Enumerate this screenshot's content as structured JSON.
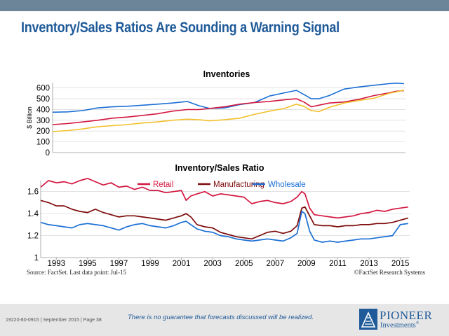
{
  "slide": {
    "title": "Inventory/Sales Ratios Are Sounding a Warning Signal",
    "source": "Source: FactSet. Last data point: Jul-15",
    "copyright": "©FactSet Research Systems"
  },
  "footer": {
    "doc_id": "19220-80-0915 | September 2015 | Page 38",
    "disclaimer": "There is no guarantee that forecasts discussed will be realized.",
    "logo_name": "PIONEER",
    "logo_sub": "Investments",
    "logo_reg": "®"
  },
  "colors": {
    "retail": "#d4163f",
    "manufacturing": "#7d0a0a",
    "wholesale": "#1b6fd4",
    "inventories_top": "#1b6fd4",
    "inventories_mid": "#d4163f",
    "inventories_bottom": "#f2c02a",
    "title_blue": "#1f5a99",
    "top_bar": "#6d8599"
  },
  "chart_data": [
    {
      "type": "line",
      "title": "Inventories",
      "ylabel": "$ Billion",
      "xlabel": "",
      "ylim": [
        0,
        650
      ],
      "yticks": [
        "0",
        "100",
        "200",
        "300",
        "400",
        "500",
        "600"
      ],
      "x": [
        1992.0,
        1993.0,
        1994.0,
        1995.0,
        1996.0,
        1997.0,
        1998.0,
        1999.0,
        2000.0,
        2001.0,
        2001.8,
        2002.5,
        2003.5,
        2004.5,
        2005.5,
        2006.5,
        2007.5,
        2008.3,
        2008.8,
        2009.3,
        2009.8,
        2010.5,
        2011.5,
        2012.5,
        2013.5,
        2014.5,
        2015.0,
        2015.5
      ],
      "series": [
        {
          "color_key": "inventories_top",
          "values": [
            375,
            378,
            390,
            415,
            425,
            430,
            440,
            450,
            460,
            475,
            435,
            410,
            415,
            445,
            465,
            525,
            555,
            578,
            540,
            500,
            500,
            530,
            590,
            610,
            625,
            640,
            645,
            640
          ]
        },
        {
          "color_key": "inventories_mid",
          "values": [
            260,
            270,
            285,
            300,
            320,
            330,
            345,
            360,
            385,
            400,
            400,
            410,
            425,
            450,
            465,
            475,
            490,
            500,
            470,
            425,
            440,
            460,
            470,
            495,
            530,
            555,
            570,
            575
          ]
        },
        {
          "color_key": "inventories_bottom",
          "values": [
            195,
            205,
            220,
            240,
            250,
            260,
            275,
            285,
            300,
            310,
            305,
            295,
            305,
            320,
            355,
            385,
            410,
            450,
            430,
            390,
            380,
            420,
            460,
            485,
            505,
            550,
            565,
            580
          ]
        }
      ]
    },
    {
      "type": "line",
      "title": "Inventory/Sales Ratio",
      "xlabel": "",
      "ylabel": "",
      "ylim": [
        1.0,
        1.7
      ],
      "yticks": [
        "1",
        "1.2",
        "1.4",
        "1.6"
      ],
      "xticks": [
        "1993",
        "1995",
        "1997",
        "1999",
        "2001",
        "2003",
        "2005",
        "2007",
        "2009",
        "2011",
        "2013",
        "2015"
      ],
      "x": [
        1992.0,
        1992.5,
        1993.0,
        1993.5,
        1994.0,
        1994.5,
        1995.0,
        1995.5,
        1996.0,
        1996.5,
        1997.0,
        1997.5,
        1998.0,
        1998.5,
        1999.0,
        1999.5,
        2000.0,
        2000.5,
        2001.0,
        2001.3,
        2001.6,
        2002.0,
        2002.5,
        2003.0,
        2003.5,
        2004.0,
        2004.5,
        2005.0,
        2005.5,
        2006.0,
        2006.5,
        2007.0,
        2007.5,
        2008.0,
        2008.4,
        2008.7,
        2008.9,
        2009.2,
        2009.5,
        2010.0,
        2010.5,
        2011.0,
        2011.5,
        2012.0,
        2012.5,
        2013.0,
        2013.5,
        2014.0,
        2014.5,
        2015.0,
        2015.5
      ],
      "series": [
        {
          "name": "Retail",
          "color_key": "retail",
          "values": [
            1.64,
            1.7,
            1.68,
            1.69,
            1.67,
            1.7,
            1.72,
            1.69,
            1.66,
            1.68,
            1.64,
            1.65,
            1.62,
            1.64,
            1.61,
            1.61,
            1.59,
            1.6,
            1.61,
            1.52,
            1.56,
            1.58,
            1.6,
            1.56,
            1.58,
            1.57,
            1.56,
            1.55,
            1.49,
            1.51,
            1.52,
            1.5,
            1.49,
            1.51,
            1.55,
            1.6,
            1.58,
            1.45,
            1.39,
            1.38,
            1.37,
            1.36,
            1.37,
            1.38,
            1.4,
            1.41,
            1.43,
            1.42,
            1.44,
            1.45,
            1.46
          ]
        },
        {
          "name": "Manufacturing",
          "color_key": "manufacturing",
          "values": [
            1.52,
            1.5,
            1.47,
            1.47,
            1.44,
            1.42,
            1.41,
            1.44,
            1.41,
            1.39,
            1.37,
            1.38,
            1.38,
            1.37,
            1.36,
            1.35,
            1.34,
            1.36,
            1.38,
            1.4,
            1.37,
            1.3,
            1.28,
            1.27,
            1.23,
            1.21,
            1.19,
            1.18,
            1.17,
            1.2,
            1.23,
            1.24,
            1.22,
            1.24,
            1.29,
            1.45,
            1.46,
            1.38,
            1.3,
            1.29,
            1.29,
            1.28,
            1.29,
            1.29,
            1.3,
            1.3,
            1.31,
            1.31,
            1.32,
            1.34,
            1.36
          ]
        },
        {
          "name": "Wholesale",
          "color_key": "wholesale",
          "values": [
            1.32,
            1.3,
            1.29,
            1.28,
            1.27,
            1.3,
            1.31,
            1.3,
            1.29,
            1.27,
            1.25,
            1.28,
            1.3,
            1.31,
            1.29,
            1.28,
            1.27,
            1.29,
            1.32,
            1.33,
            1.3,
            1.26,
            1.24,
            1.23,
            1.2,
            1.19,
            1.17,
            1.16,
            1.15,
            1.16,
            1.17,
            1.16,
            1.15,
            1.18,
            1.22,
            1.42,
            1.4,
            1.24,
            1.16,
            1.14,
            1.15,
            1.14,
            1.15,
            1.16,
            1.17,
            1.17,
            1.18,
            1.19,
            1.2,
            1.3,
            1.31
          ]
        }
      ],
      "legend": "top"
    }
  ]
}
